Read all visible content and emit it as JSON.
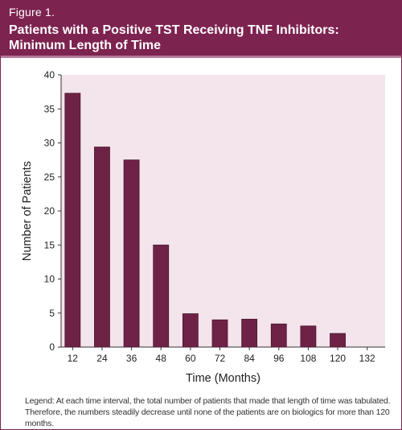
{
  "figure_label": "Figure 1.",
  "figure_title": "Patients with a Positive TST Receiving TNF Inhibitors: Minimum Length of Time",
  "legend_text": "Legend: At each time interval, the total number of patients that made that length of time was tabulated. Therefore, the numbers steadily decrease until none of the patients are on biologics for more than 120 months.",
  "colors": {
    "brand": "#7d2350",
    "plot_background": "#f4e4eb",
    "bar": "#6e2346",
    "bar_dark": "#4a1530"
  },
  "chart_data": {
    "type": "bar",
    "title": "",
    "xlabel": "Time (Months)",
    "ylabel": "Number of Patients",
    "categories": [
      "12",
      "24",
      "36",
      "48",
      "60",
      "72",
      "84",
      "96",
      "108",
      "120",
      "132"
    ],
    "values": [
      37.3,
      29.4,
      27.5,
      15,
      4.9,
      4,
      4.1,
      3.4,
      3.1,
      2,
      0
    ],
    "ylim": [
      0,
      40
    ],
    "yticks": [
      0,
      5,
      10,
      15,
      20,
      25,
      30,
      35,
      40
    ],
    "grid": false
  }
}
